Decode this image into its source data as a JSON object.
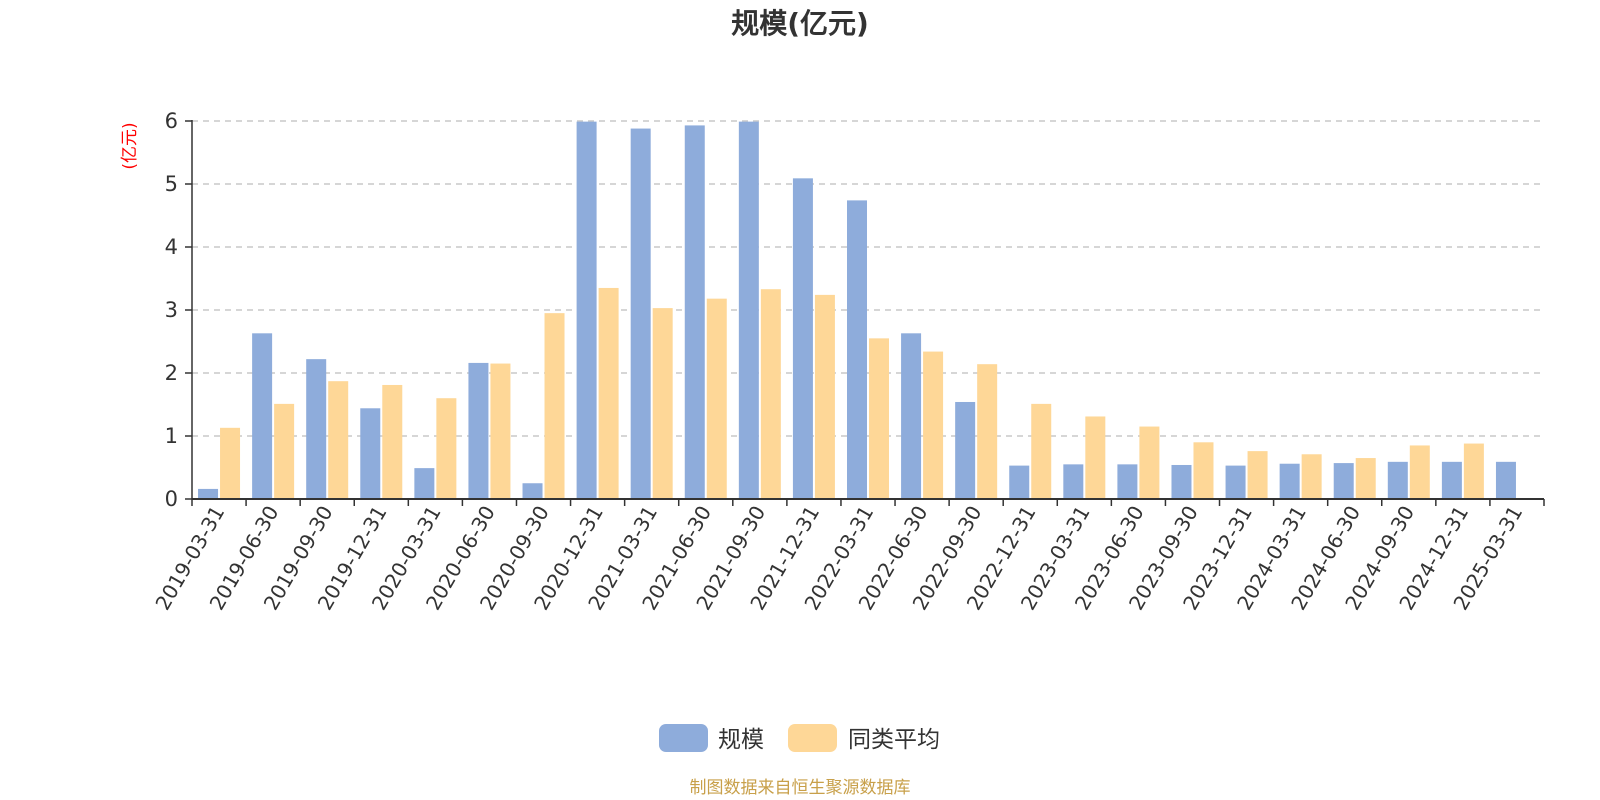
{
  "chart_data": {
    "type": "bar",
    "title": "规模(亿元)",
    "unit_label": "(亿元)",
    "xlabel": "",
    "ylabel": "",
    "ylim": [
      0,
      6
    ],
    "y_ticks": [
      "0",
      "1",
      "2",
      "3",
      "4",
      "5",
      "6"
    ],
    "grid": true,
    "legend_position": "bottom",
    "categories": [
      "2019-03-31",
      "2019-06-30",
      "2019-09-30",
      "2019-12-31",
      "2020-03-31",
      "2020-06-30",
      "2020-09-30",
      "2020-12-31",
      "2021-03-31",
      "2021-06-30",
      "2021-09-30",
      "2021-12-31",
      "2022-03-31",
      "2022-06-30",
      "2022-09-30",
      "2022-12-31",
      "2023-03-31",
      "2023-06-30",
      "2023-09-30",
      "2023-12-31",
      "2024-03-31",
      "2024-06-30",
      "2024-09-30",
      "2024-12-31",
      "2025-03-31"
    ],
    "series": [
      {
        "name": "规模",
        "color": "#8eacdb",
        "values": [
          0.16,
          2.63,
          2.22,
          1.44,
          0.49,
          2.16,
          0.25,
          5.99,
          5.88,
          5.93,
          5.99,
          5.09,
          4.74,
          2.63,
          1.54,
          0.53,
          0.55,
          0.55,
          0.54,
          0.53,
          0.56,
          0.57,
          0.59,
          0.59,
          0.59
        ]
      },
      {
        "name": "同类平均",
        "color": "#fed797",
        "values": [
          1.13,
          1.51,
          1.87,
          1.81,
          1.6,
          2.15,
          2.95,
          3.35,
          3.03,
          3.18,
          3.33,
          3.24,
          2.55,
          2.34,
          2.14,
          1.51,
          1.31,
          1.15,
          0.9,
          0.76,
          0.71,
          0.65,
          0.85,
          0.88,
          null
        ]
      }
    ],
    "source_note": "制图数据来自恒生聚源数据库"
  }
}
